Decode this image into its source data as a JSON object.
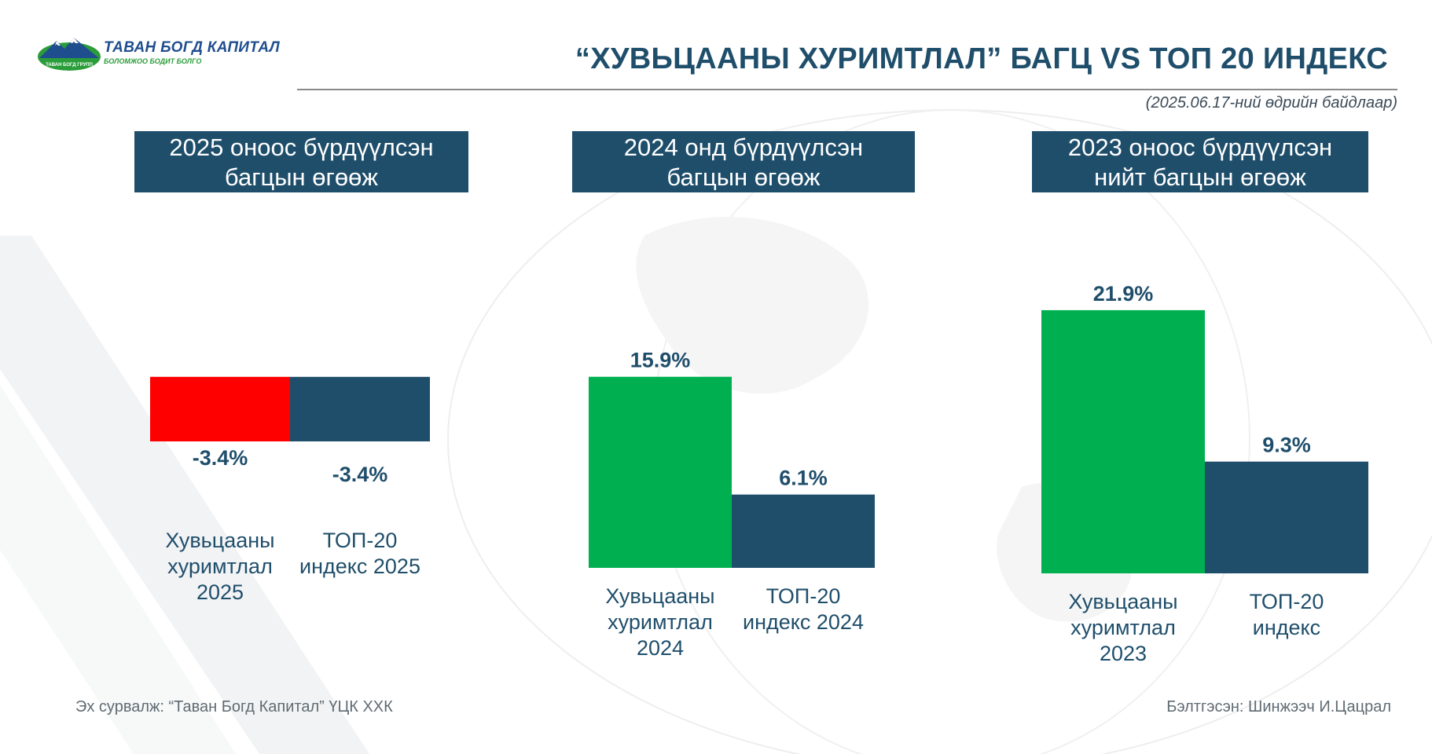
{
  "header": {
    "logo_name": "ТАВАН БОГД КАПИТАЛ",
    "logo_slogan": "БОЛОМЖОО БОДИТ БОЛГО",
    "logo_badge": "ТАВАН БОГД ГРУПП",
    "title": "“ХУВЬЦААНЫ ХУРИМТЛАЛ” БАГЦ VS ТОП 20 ИНДЕКС",
    "as_of": "(2025.06.17-ний өдрийн байдлаар)"
  },
  "colors": {
    "navy": "#1f4e6b",
    "green": "#00b050",
    "red": "#ff0000"
  },
  "chart_data": [
    {
      "type": "bar",
      "title": "2025 оноос бүрдүүлсэн багцын өгөөж",
      "title_lines": [
        "2025 оноос бүрдүүлсэн",
        "багцын өгөөж"
      ],
      "categories": [
        [
          "Хувьцааны",
          "хуримтлал",
          "2025"
        ],
        [
          "ТОП-20",
          "индекс 2025"
        ]
      ],
      "values": [
        -3.4,
        -3.4
      ],
      "labels": [
        "-3.4%",
        "-3.4%"
      ],
      "bar_colors": [
        "#ff0000",
        "#1f4e6b"
      ]
    },
    {
      "type": "bar",
      "title": "2024 онд бүрдүүлсэн багцын өгөөж",
      "title_lines": [
        "2024 онд бүрдүүлсэн",
        "багцын өгөөж"
      ],
      "categories": [
        [
          "Хувьцааны",
          "хуримтлал",
          "2024"
        ],
        [
          "ТОП-20",
          "индекс 2024"
        ]
      ],
      "values": [
        15.9,
        6.1
      ],
      "labels": [
        "15.9%",
        "6.1%"
      ],
      "bar_colors": [
        "#00b050",
        "#1f4e6b"
      ]
    },
    {
      "type": "bar",
      "title": "2023 оноос бүрдүүлсэн нийт багцын өгөөж",
      "title_lines": [
        "2023 оноос бүрдүүлсэн",
        "нийт багцын өгөөж"
      ],
      "categories": [
        [
          "Хувьцааны",
          "хуримтлал",
          "2023"
        ],
        [
          "ТОП-20",
          "индекс"
        ]
      ],
      "values": [
        21.9,
        9.3
      ],
      "labels": [
        "21.9%",
        "9.3%"
      ],
      "bar_colors": [
        "#00b050",
        "#1f4e6b"
      ]
    }
  ],
  "footer": {
    "source": "Эх сурвалж: “Таван Богд Капитал” ҮЦК ХХК",
    "author": "Бэлтгэсэн: Шинжээч И.Цацрал"
  }
}
